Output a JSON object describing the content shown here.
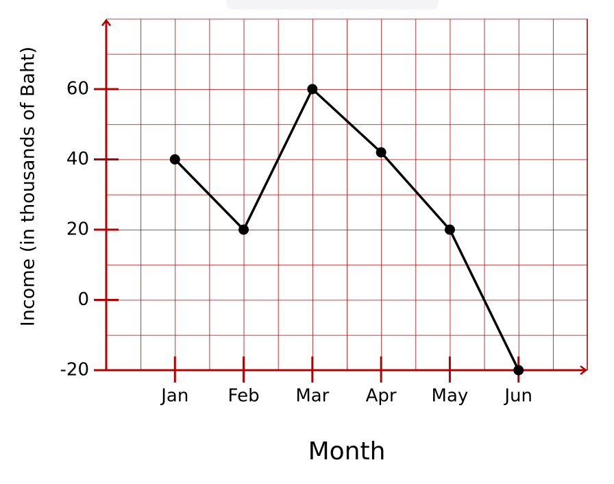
{
  "chart_data": {
    "type": "line",
    "x_label": "Month",
    "y_label": "Income (in thousands of Baht)",
    "categories": [
      "Jan",
      "Feb",
      "Mar",
      "Apr",
      "May",
      "Jun"
    ],
    "values": [
      40,
      20,
      60,
      42,
      20,
      -20
    ],
    "color": "#000000",
    "axis_color": "#b30000",
    "ylim": [
      -20,
      80
    ],
    "yticks": [
      -20,
      0,
      20,
      40,
      60
    ],
    "grid": true
  }
}
